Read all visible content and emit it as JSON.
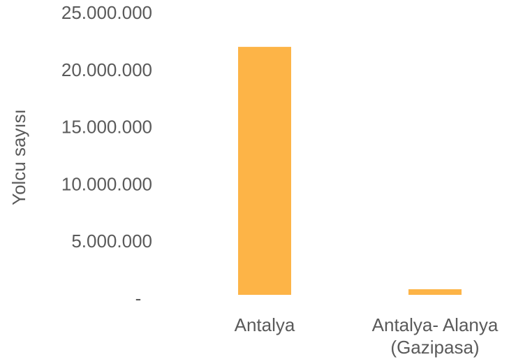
{
  "chart_data": {
    "type": "bar",
    "title": "",
    "xlabel": "",
    "ylabel": "Yolcu sayısı",
    "categories": [
      [
        "Antalya"
      ],
      [
        "Antalya- Alanya",
        "(Gazipasa)"
      ]
    ],
    "values": [
      22000000,
      550000
    ],
    "ylim": [
      0,
      25000000
    ],
    "y_ticks": [
      {
        "value": 0,
        "label": "-"
      },
      {
        "value": 5000000,
        "label": "5.000.000"
      },
      {
        "value": 10000000,
        "label": "10.000.000"
      },
      {
        "value": 15000000,
        "label": "15.000.000"
      },
      {
        "value": 20000000,
        "label": "20.000.000"
      },
      {
        "value": 25000000,
        "label": "25.000.000"
      }
    ],
    "grid": false,
    "legend": "none",
    "bar_color": "#FDB447",
    "text_color": "#5a5a5a"
  }
}
